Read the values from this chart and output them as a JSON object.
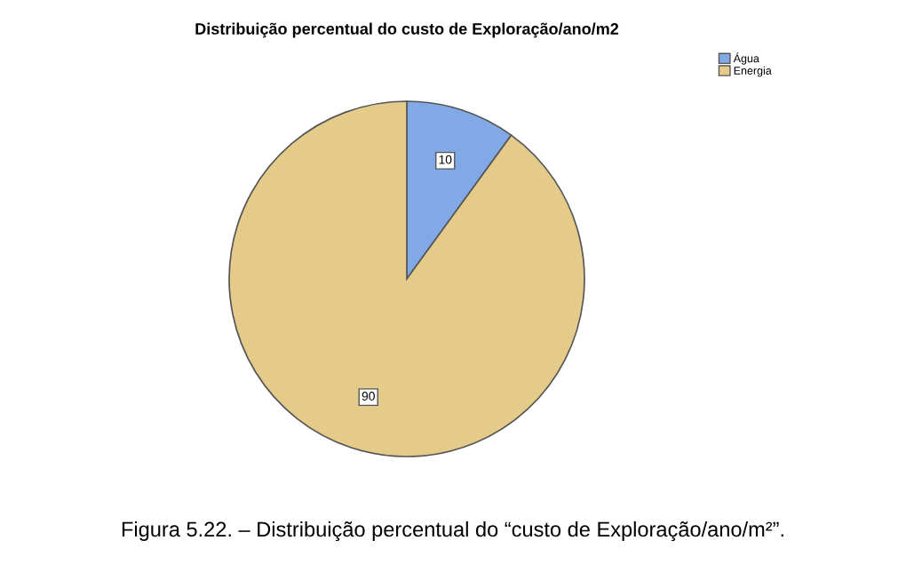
{
  "chart_data": {
    "type": "pie",
    "title": "Distribuição percentual do custo de Exploração/ano/m2",
    "categories": [
      "Água",
      "Energia"
    ],
    "values": [
      10,
      90
    ],
    "colors": [
      "#80a9e6",
      "#e4cb8a"
    ],
    "data_labels": true,
    "legend": "top right",
    "annotations": [
      "Figura 5.22. – Distribuição percentual do “custo de Exploração/ano/m²”."
    ]
  }
}
